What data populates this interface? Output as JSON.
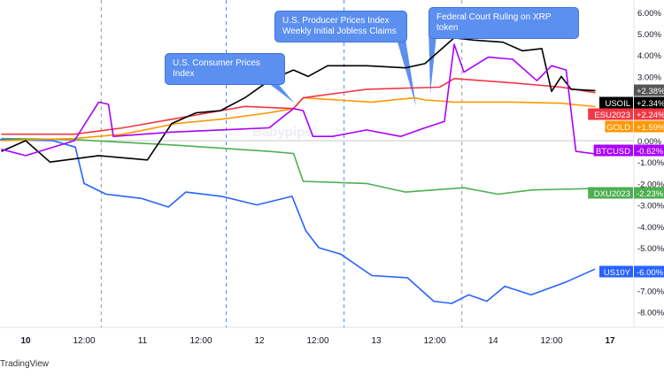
{
  "chart_data": {
    "type": "line",
    "title": "",
    "x_unit": "hours since day 10 00:00",
    "x_ticks": [
      {
        "h": 0,
        "label": "10"
      },
      {
        "h": 12,
        "label": "12:00"
      },
      {
        "h": 24,
        "label": "11"
      },
      {
        "h": 36,
        "label": "12:00"
      },
      {
        "h": 48,
        "label": "12"
      },
      {
        "h": 60,
        "label": "12:00"
      },
      {
        "h": 72,
        "label": "13"
      },
      {
        "h": 84,
        "label": "12:00"
      },
      {
        "h": 96,
        "label": "14"
      },
      {
        "h": 108,
        "label": "12:00"
      },
      {
        "h": 120,
        "label": "17"
      }
    ],
    "y_ticks": [
      "6.00%",
      "5.00%",
      "4.00%",
      "3.00%",
      "0.00%",
      "-1.00%",
      "-2.00%",
      "-3.00%",
      "-4.00%",
      "-5.00%",
      "-7.00%",
      "-8.00%"
    ],
    "y_tick_values": [
      6,
      5,
      4,
      3,
      0,
      -1,
      -2,
      -3,
      -4,
      -5,
      -7,
      -8
    ],
    "ylim": [
      -8.3,
      6.3
    ],
    "series": [
      {
        "name": "DXU2023",
        "label": "-2.23%",
        "color": "#4caf50",
        "points": [
          [
            -5,
            0.1
          ],
          [
            10,
            0.05
          ],
          [
            30,
            -0.2
          ],
          [
            50,
            -0.5
          ],
          [
            55,
            -0.6
          ],
          [
            57,
            -1.9
          ],
          [
            70,
            -2.0
          ],
          [
            78,
            -2.4
          ],
          [
            90,
            -2.2
          ],
          [
            97,
            -2.5
          ],
          [
            104,
            -2.3
          ],
          [
            117,
            -2.23
          ]
        ]
      },
      {
        "name": "US10Y",
        "label": "-6.00%",
        "color": "#2962ff",
        "points": [
          [
            -5.3,
            0.05
          ],
          [
            5.6,
            0
          ],
          [
            10.2,
            -0.3
          ],
          [
            12,
            -2
          ],
          [
            16.5,
            -2.5
          ],
          [
            23.8,
            -2.7
          ],
          [
            29.3,
            -3.1
          ],
          [
            32.9,
            -2.4
          ],
          [
            40.2,
            -2.6
          ],
          [
            47.5,
            -3.0
          ],
          [
            54.7,
            -2.6
          ],
          [
            57.5,
            -4.2
          ],
          [
            60.2,
            -5.0
          ],
          [
            64.7,
            -5.3
          ],
          [
            71.1,
            -6.3
          ],
          [
            78.4,
            -6.4
          ],
          [
            83.8,
            -7.5
          ],
          [
            87.5,
            -7.6
          ],
          [
            91,
            -7.2
          ],
          [
            94.7,
            -7.5
          ],
          [
            98.4,
            -6.8
          ],
          [
            103.8,
            -7.2
          ],
          [
            111,
            -6.6
          ],
          [
            116.9,
            -6.0
          ]
        ]
      },
      {
        "name": "GOLD",
        "label": "+1.59%",
        "color": "#ff9800",
        "points": [
          [
            -5,
            0
          ],
          [
            10,
            0.1
          ],
          [
            20,
            0.3
          ],
          [
            31,
            0.8
          ],
          [
            40,
            1.0
          ],
          [
            50,
            1.3
          ],
          [
            55,
            1.5
          ],
          [
            57,
            2.0
          ],
          [
            71,
            1.8
          ],
          [
            80,
            2.0
          ],
          [
            82,
            1.9
          ],
          [
            88,
            1.8
          ],
          [
            100,
            1.8
          ],
          [
            110,
            1.75
          ],
          [
            117,
            1.59
          ]
        ]
      },
      {
        "name": "ESU2023",
        "label": "+2.24%",
        "color": "#f23645",
        "points": [
          [
            -5,
            0.3
          ],
          [
            10,
            0.3
          ],
          [
            20,
            0.6
          ],
          [
            30,
            1.0
          ],
          [
            45,
            1.6
          ],
          [
            55,
            1.5
          ],
          [
            57,
            2.0
          ],
          [
            70,
            2.4
          ],
          [
            85,
            2.5
          ],
          [
            88,
            2.9
          ],
          [
            100,
            2.7
          ],
          [
            110,
            2.5
          ],
          [
            117,
            2.24
          ]
        ]
      },
      {
        "name": "USOIL",
        "label": "+2.34%",
        "color": "#000000",
        "points": [
          [
            -5,
            -0.5
          ],
          [
            0,
            0
          ],
          [
            5,
            -1.0
          ],
          [
            15,
            -0.7
          ],
          [
            25,
            -0.9
          ],
          [
            30,
            0.8
          ],
          [
            35,
            1.3
          ],
          [
            40,
            1.4
          ],
          [
            45,
            2.0
          ],
          [
            50,
            2.8
          ],
          [
            55,
            3.3
          ],
          [
            58,
            3.0
          ],
          [
            62,
            3.5
          ],
          [
            70,
            3.5
          ],
          [
            78,
            3.4
          ],
          [
            82,
            3.6
          ],
          [
            88,
            4.8
          ],
          [
            92,
            4.7
          ],
          [
            98,
            4.6
          ],
          [
            102,
            4.2
          ],
          [
            106,
            4.3
          ],
          [
            108,
            2.3
          ],
          [
            110,
            3.0
          ],
          [
            112,
            2.4
          ],
          [
            117,
            2.34
          ]
        ]
      },
      {
        "name": "BTCUSD",
        "label": "-0.62%",
        "color": "#aa00ff",
        "points": [
          [
            -5,
            -0.4
          ],
          [
            0,
            -0.7
          ],
          [
            10,
            0
          ],
          [
            15,
            1.8
          ],
          [
            17,
            1.7
          ],
          [
            18,
            0.2
          ],
          [
            30,
            0.4
          ],
          [
            40,
            0.5
          ],
          [
            50,
            0.6
          ],
          [
            55,
            1.5
          ],
          [
            57,
            1.4
          ],
          [
            59,
            0.2
          ],
          [
            63,
            0.2
          ],
          [
            70,
            0.5
          ],
          [
            77,
            0.2
          ],
          [
            82,
            0.6
          ],
          [
            86,
            0.9
          ],
          [
            88,
            4.5
          ],
          [
            90,
            3.2
          ],
          [
            95,
            3.9
          ],
          [
            100,
            3.8
          ],
          [
            105,
            2.8
          ],
          [
            108,
            3.5
          ],
          [
            111,
            3.3
          ],
          [
            113,
            -0.5
          ],
          [
            117,
            -0.62
          ]
        ]
      }
    ],
    "extra_label": {
      "label": "+2.38%",
      "color": "#555555"
    },
    "event_lines": [
      {
        "h": 15.5,
        "color": "#787b86"
      },
      {
        "h": 41.2,
        "color": "#2962ff"
      },
      {
        "h": 65.4,
        "color": "#2962ff"
      },
      {
        "h": 89.6,
        "color": "#787b86"
      }
    ]
  },
  "annotations": {
    "cpi": "U.S. Consumer Prices Index",
    "ppi_line1": "U.S. Producer Prices Index",
    "ppi_line2": "Weekly Initial Jobless Claims",
    "xrp": "Federal Court Ruling on XRP token"
  },
  "watermark": "Babypips",
  "footer": "TradingView"
}
